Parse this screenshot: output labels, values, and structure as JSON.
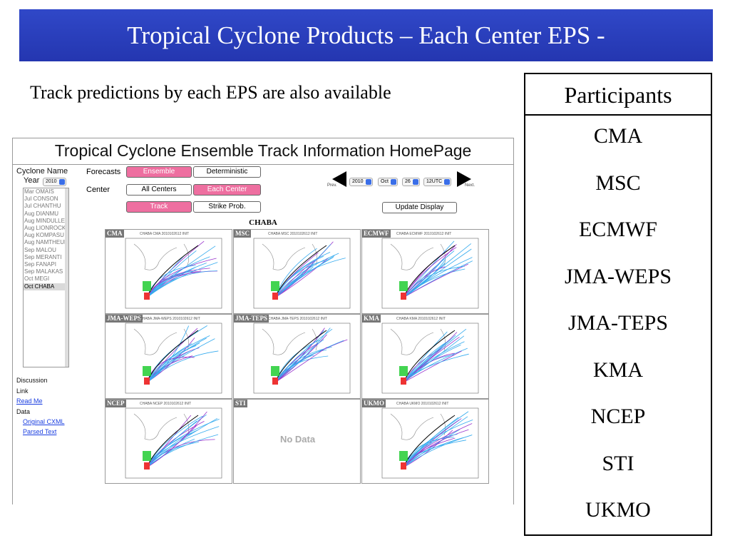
{
  "slide": {
    "title": "Tropical Cyclone Products – Each Center EPS -",
    "subtitle": "Track predictions by each EPS are also available"
  },
  "participants": {
    "header": "Participants",
    "items": [
      "CMA",
      "MSC",
      "ECMWF",
      "JMA-WEPS",
      "JMA-TEPS",
      "KMA",
      "NCEP",
      "STI",
      "UKMO"
    ]
  },
  "homepage": {
    "title": "Tropical Cyclone Ensemble Track Information HomePage",
    "cyclone_name_label": "Cyclone Name",
    "year_label": "Year",
    "year_value": "2010",
    "cyclones": [
      "Mar OMAIS",
      "Jul CONSON",
      "Jul CHANTHU",
      "Aug DIANMU",
      "Aug MINDULLE",
      "Aug LIONROCK",
      "Aug KOMPASU",
      "Aug NAMTHEUN",
      "Sep MALOU",
      "Sep MERANTI",
      "Sep FANAPI",
      "Sep MALAKAS",
      "Oct MEGI",
      "Oct CHABA"
    ],
    "selected_cyclone": "Oct CHABA",
    "forecasts_label": "Forecasts",
    "ensemble_btn": "Ensemble",
    "deterministic_btn": "Deterministic",
    "center_label": "Center",
    "all_centers_btn": "All Centers",
    "each_center_btn": "Each Center",
    "track_btn": "Track",
    "strike_btn": "Strike Prob.",
    "prev_label": "Prev.",
    "next_label": "Next.",
    "date_year": "2010",
    "date_month": "Oct",
    "date_day": "26",
    "date_time": "12UTC",
    "update_btn": "Update Display",
    "storm_name": "CHABA",
    "discussion": "Discussion",
    "link": "Link",
    "read_me": "Read Me",
    "data": "Data",
    "original_cxml": "Original CXML",
    "parsed_text": "Parsed Text",
    "no_data": "No Data"
  },
  "panels": [
    {
      "tag": "CMA",
      "meta": "CHABA   CMA   2010102612  INIT",
      "has_data": true
    },
    {
      "tag": "MSC",
      "meta": "CHABA   MSC   2010102612  INIT",
      "has_data": true
    },
    {
      "tag": "ECMWF",
      "meta": "CHABA   ECMWF   2010102612  INIT",
      "has_data": true
    },
    {
      "tag": "JMA-WEPS",
      "meta": "CHABA   JMA-WEPS   2010102612  INIT",
      "has_data": true
    },
    {
      "tag": "JMA-TEPS",
      "meta": "CHABA   JMA-TEPS   2010102612  INIT",
      "has_data": true
    },
    {
      "tag": "KMA",
      "meta": "CHABA   KMA   2010102612  INIT",
      "has_data": true
    },
    {
      "tag": "NCEP",
      "meta": "CHABA   NCEP   2010102612  INIT",
      "has_data": true
    },
    {
      "tag": "STI",
      "meta": "",
      "has_data": false
    },
    {
      "tag": "UKMO",
      "meta": "CHABA   UKMO   2010102612  INIT",
      "has_data": true
    }
  ],
  "colors": {
    "title_bar": "#2a3fbe",
    "pink_button": "#ee6fa0",
    "track_cyan": "#33aaee",
    "track_purple": "#9933cc",
    "track_green": "#22cc33",
    "track_red": "#ee3333"
  }
}
